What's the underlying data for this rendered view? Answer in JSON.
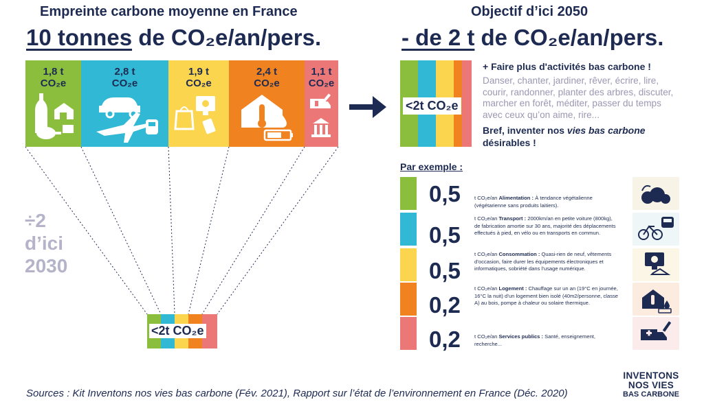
{
  "left": {
    "subtitle": "Empreinte carbone moyenne en France",
    "headline_main": "10 tonnes",
    "headline_rest": " de CO₂e/an/pers."
  },
  "right": {
    "subtitle": "Objectif d’ici 2050",
    "headline_main": "- de 2 t",
    "headline_rest": " de CO₂e/an/pers."
  },
  "categories": [
    {
      "value": "1,8 t",
      "unit": "CO₂e",
      "color": "#8bbe3c",
      "icons": [
        "bottle-icon",
        "house-food-icon",
        "chicken-leg-icon"
      ]
    },
    {
      "value": "2,8 t",
      "unit": "CO₂e",
      "color": "#31b8d4",
      "icons": [
        "car-icon",
        "plane-icon",
        "train-icon"
      ]
    },
    {
      "value": "1,9 t",
      "unit": "CO₂e",
      "color": "#fbd54e",
      "icons": [
        "shopping-bag-icon",
        "monitor-icon",
        "phone-icon"
      ]
    },
    {
      "value": "2,4 t",
      "unit": "CO₂e",
      "color": "#f0831f",
      "icons": [
        "house-thermometer-icon",
        "battery-icon"
      ]
    },
    {
      "value": "1,1 t",
      "unit": "CO₂e",
      "color": "#ec7777",
      "icons": [
        "ambulance-icon",
        "syringe-icon",
        "building-icon"
      ]
    }
  ],
  "target_box_label": "<2t CO₂e",
  "activities": {
    "title": "+ Faire plus d'activités bas carbone  !",
    "body": "Danser, chanter, jardiner, rêver, écrire, lire, courir, randonner, planter des arbres, discuter, marcher en forêt, méditer, passer du temps avec ceux qu’on aime, rire...",
    "conclusion_start": "Bref, inventer nos ",
    "conclusion_emph": "vies bas carbone",
    "conclusion_end": " désirables !"
  },
  "examples_title": "Par exemple :",
  "examples": [
    {
      "value": "0,5",
      "unit": "t CO₂e/an ",
      "label": "Alimentation :",
      "desc": " À tendance végétalienne (végétarienne sans produits laitiers).",
      "color": "#8bbe3c",
      "icon": "food-basket-icon"
    },
    {
      "value": "0,5",
      "unit": "t CO₂e/an ",
      "label": "Transport :",
      "desc": " 2000km/an en petite voiture (800kg), de fabrication amortie sur 30 ans, majorité des déplacements effectués à pied, en vélo ou en transports en commun.",
      "color": "#31b8d4",
      "icon": "bicycle-bus-icon"
    },
    {
      "value": "0,5",
      "unit": "t CO₂e/an ",
      "label": "Consommation :",
      "desc": " Quasi-rien de neuf, vêtements d’occasion, faire durer les équipements électroniques et informatiques, sobriété dans l’usage numérique.",
      "color": "#fbd54e",
      "icon": "computer-hanger-icon"
    },
    {
      "value": "0,2",
      "unit": "t CO₂e/an ",
      "label": "Logement :",
      "desc": " Chauffage sur un an (19°C en journée, 16°C la nuit) d’un logement bien isolé (40m2/personne, classe A) au bois, pompe à chaleur ou solaire thermique.",
      "color": "#f0831f",
      "icon": "house-heat-icon"
    },
    {
      "value": "0,2",
      "unit": "t CO₂e/an ",
      "label": "Services publics :",
      "desc": " Santé, enseignement, recherche...",
      "color": "#ec7777",
      "icon": "ambulance-syringe-icon"
    }
  ],
  "divide_text": [
    "÷2",
    "d’ici",
    "2030"
  ],
  "small_box_label": "<2t CO₂e",
  "sources": "Sources : Kit Inventons nos vies bas carbone (Fév. 2021), Rapport sur l’état de l’environnement en France (Déc. 2020)",
  "logo": [
    "INVENTONS",
    "NOS VIES",
    "BAS CARBONE"
  ]
}
